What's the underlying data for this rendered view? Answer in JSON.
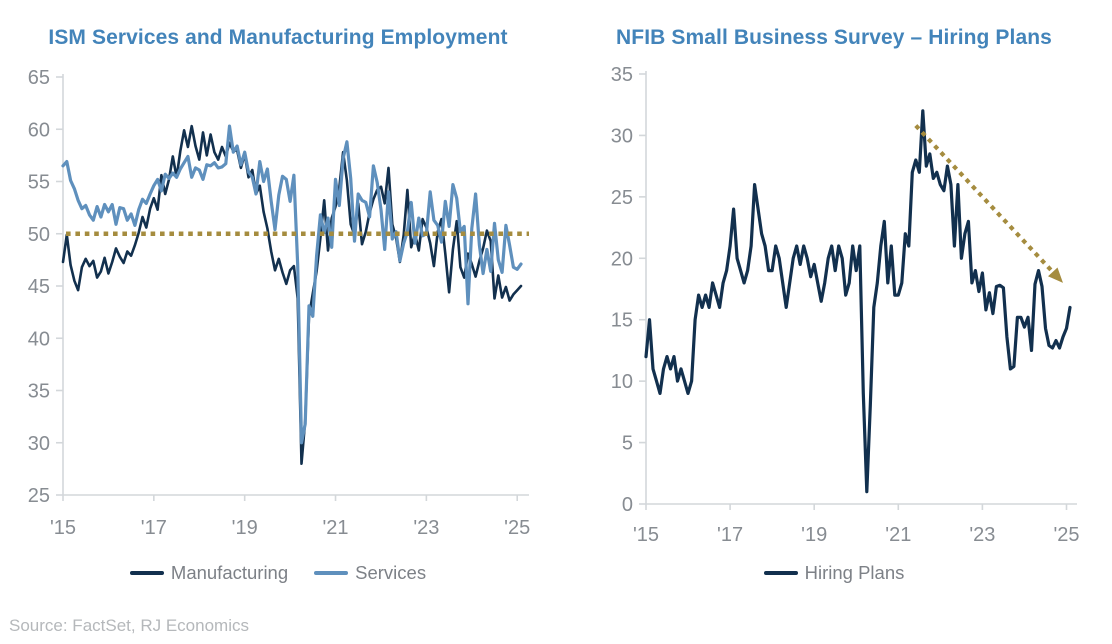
{
  "page": {
    "source_note": "Source: FactSet, RJ Economics"
  },
  "colors": {
    "title_blue": "#4384ba",
    "navy": "#12304e",
    "steel_blue": "#5f90bd",
    "gold": "#a58c3f",
    "axis_label": "#878c92",
    "legend_text": "#7d8187",
    "source_text": "#b5b8bb",
    "axis_line": "#d3d7da"
  },
  "chart_data": [
    {
      "type": "line",
      "title": "ISM Services and Manufacturing Employment",
      "x_unit": "month",
      "x_start": "2015-01",
      "x_end": "2025-02",
      "x_tick_labels": [
        "'15",
        "'17",
        "'19",
        "'21",
        "'23",
        "'25"
      ],
      "x_tick_month_interval": 24,
      "ylim": [
        25,
        65
      ],
      "y_ticks": [
        65,
        60,
        55,
        50,
        45,
        40,
        35,
        30,
        25
      ],
      "grid": false,
      "legend_position": "bottom",
      "reference_line": {
        "value": 50,
        "style": "dotted",
        "color_key": "gold"
      },
      "series": [
        {
          "name": "Manufacturing",
          "color_key": "navy",
          "stroke_width": 2.6,
          "values": [
            47.3,
            49.9,
            47.0,
            45.5,
            44.6,
            46.8,
            47.6,
            46.9,
            47.4,
            45.8,
            46.4,
            47.7,
            46.2,
            47.3,
            48.6,
            47.8,
            47.2,
            48.3,
            47.9,
            48.9,
            50.1,
            51.6,
            50.6,
            52.4,
            53.4,
            52.3,
            55.6,
            53.8,
            55.2,
            57.4,
            55.4,
            57.9,
            59.9,
            58.3,
            60.3,
            58.4,
            57.1,
            59.7,
            57.5,
            59.5,
            57.8,
            57.1,
            58.3,
            57.4,
            58.7,
            57.9,
            58.0,
            56.3,
            57.6,
            55.4,
            56.1,
            53.8,
            54.6,
            52.1,
            50.5,
            48.3,
            46.5,
            47.6,
            46.3,
            45.2,
            46.5,
            46.9,
            43.8,
            28.0,
            32.1,
            42.1,
            44.3,
            46.4,
            49.6,
            53.2,
            48.4,
            51.5,
            52.6,
            54.4,
            57.8,
            55.1,
            50.9,
            49.9,
            52.9,
            49.0,
            50.2,
            52.0,
            53.3,
            54.2,
            54.5,
            52.9,
            56.3,
            50.9,
            49.6,
            47.3,
            49.9,
            54.2,
            48.7,
            50.0,
            48.4,
            51.4,
            50.6,
            49.1,
            46.9,
            50.2,
            51.4,
            48.1,
            44.4,
            48.5,
            51.2,
            46.8,
            45.8,
            48.1,
            47.1,
            45.9,
            47.4,
            48.6,
            50.3,
            49.3,
            43.8,
            46.0,
            43.9,
            44.9,
            43.6,
            44.2,
            44.6,
            45.0
          ]
        },
        {
          "name": "Services",
          "color_key": "steel_blue",
          "stroke_width": 3.2,
          "values": [
            56.5,
            56.9,
            55.1,
            54.3,
            53.2,
            52.4,
            52.7,
            51.8,
            51.3,
            52.6,
            51.6,
            52.8,
            52.1,
            52.8,
            50.9,
            52.5,
            52.4,
            51.3,
            51.9,
            50.8,
            52.3,
            53.3,
            52.9,
            53.8,
            54.6,
            55.2,
            54.1,
            55.7,
            55.3,
            55.8,
            55.4,
            56.2,
            56.8,
            57.4,
            55.4,
            56.3,
            56.1,
            55.2,
            56.6,
            56.5,
            56.8,
            56.3,
            56.4,
            56.7,
            60.3,
            57.8,
            58.4,
            56.6,
            57.8,
            55.9,
            55.4,
            53.8,
            56.9,
            55.0,
            56.2,
            53.1,
            50.4,
            53.7,
            55.5,
            55.2,
            53.1,
            55.6,
            47.0,
            30.0,
            31.8,
            43.1,
            42.1,
            47.9,
            51.8,
            50.1,
            51.5,
            48.7,
            55.2,
            52.7,
            57.2,
            58.8,
            55.3,
            49.3,
            53.8,
            53.2,
            53.0,
            51.6,
            56.5,
            54.9,
            52.3,
            48.5,
            54.0,
            49.5,
            50.2,
            47.4,
            49.1,
            50.2,
            53.0,
            49.1,
            51.5,
            49.8,
            50.0,
            54.0,
            51.3,
            50.8,
            49.2,
            53.1,
            50.7,
            54.7,
            53.4,
            50.2,
            50.7,
            43.3,
            50.5,
            53.8,
            48.9,
            46.2,
            48.5,
            46.4,
            51.0,
            47.5,
            46.3,
            50.8,
            48.9,
            46.8,
            46.6,
            47.1
          ]
        }
      ]
    },
    {
      "type": "line",
      "title": "NFIB Small Business Survey – Hiring Plans",
      "x_unit": "month",
      "x_start": "2015-01",
      "x_end": "2025-02",
      "x_tick_labels": [
        "'15",
        "'17",
        "'19",
        "'21",
        "'23",
        "'25"
      ],
      "x_tick_month_interval": 24,
      "ylim": [
        0,
        35
      ],
      "y_ticks": [
        35,
        30,
        25,
        20,
        15,
        10,
        5,
        0
      ],
      "grid": false,
      "legend_position": "bottom",
      "annotation_arrow": {
        "style": "dotted",
        "color_key": "gold",
        "from_month_index": 77,
        "from_value": 30.8,
        "to_month_index": 119,
        "to_value": 18.0
      },
      "series": [
        {
          "name": "Hiring Plans",
          "color_key": "navy",
          "stroke_width": 3.2,
          "values": [
            12,
            15,
            11,
            10,
            9,
            11,
            12,
            11,
            12,
            10,
            11,
            10,
            9,
            10,
            15,
            17,
            16,
            17,
            16,
            18,
            17,
            16,
            18,
            19,
            21,
            24,
            20,
            19,
            18,
            19,
            21,
            26,
            24,
            22,
            21,
            19,
            19,
            21,
            20,
            18,
            16,
            18,
            20,
            21,
            19.5,
            21,
            20,
            18.5,
            19.5,
            18,
            16.5,
            18,
            20,
            21,
            19,
            21,
            20,
            17,
            18,
            21,
            19,
            21,
            9,
            1,
            8,
            16,
            18,
            21,
            23,
            18,
            21,
            17,
            17,
            18,
            22,
            21,
            27,
            28,
            27,
            32,
            27.5,
            28.5,
            26.5,
            27,
            26,
            25.5,
            27.5,
            26,
            21,
            26,
            20,
            22,
            23,
            18,
            19,
            17.3,
            18.8,
            15.8,
            17.2,
            15.5,
            17.7,
            17.8,
            17.6,
            13.6,
            11,
            11.2,
            15.2,
            15.2,
            14.4,
            15.2,
            12.5,
            17.9,
            19,
            17.7,
            14.3,
            12.9,
            12.7,
            13.3,
            12.7,
            13.6,
            14.3,
            16
          ]
        }
      ]
    }
  ]
}
